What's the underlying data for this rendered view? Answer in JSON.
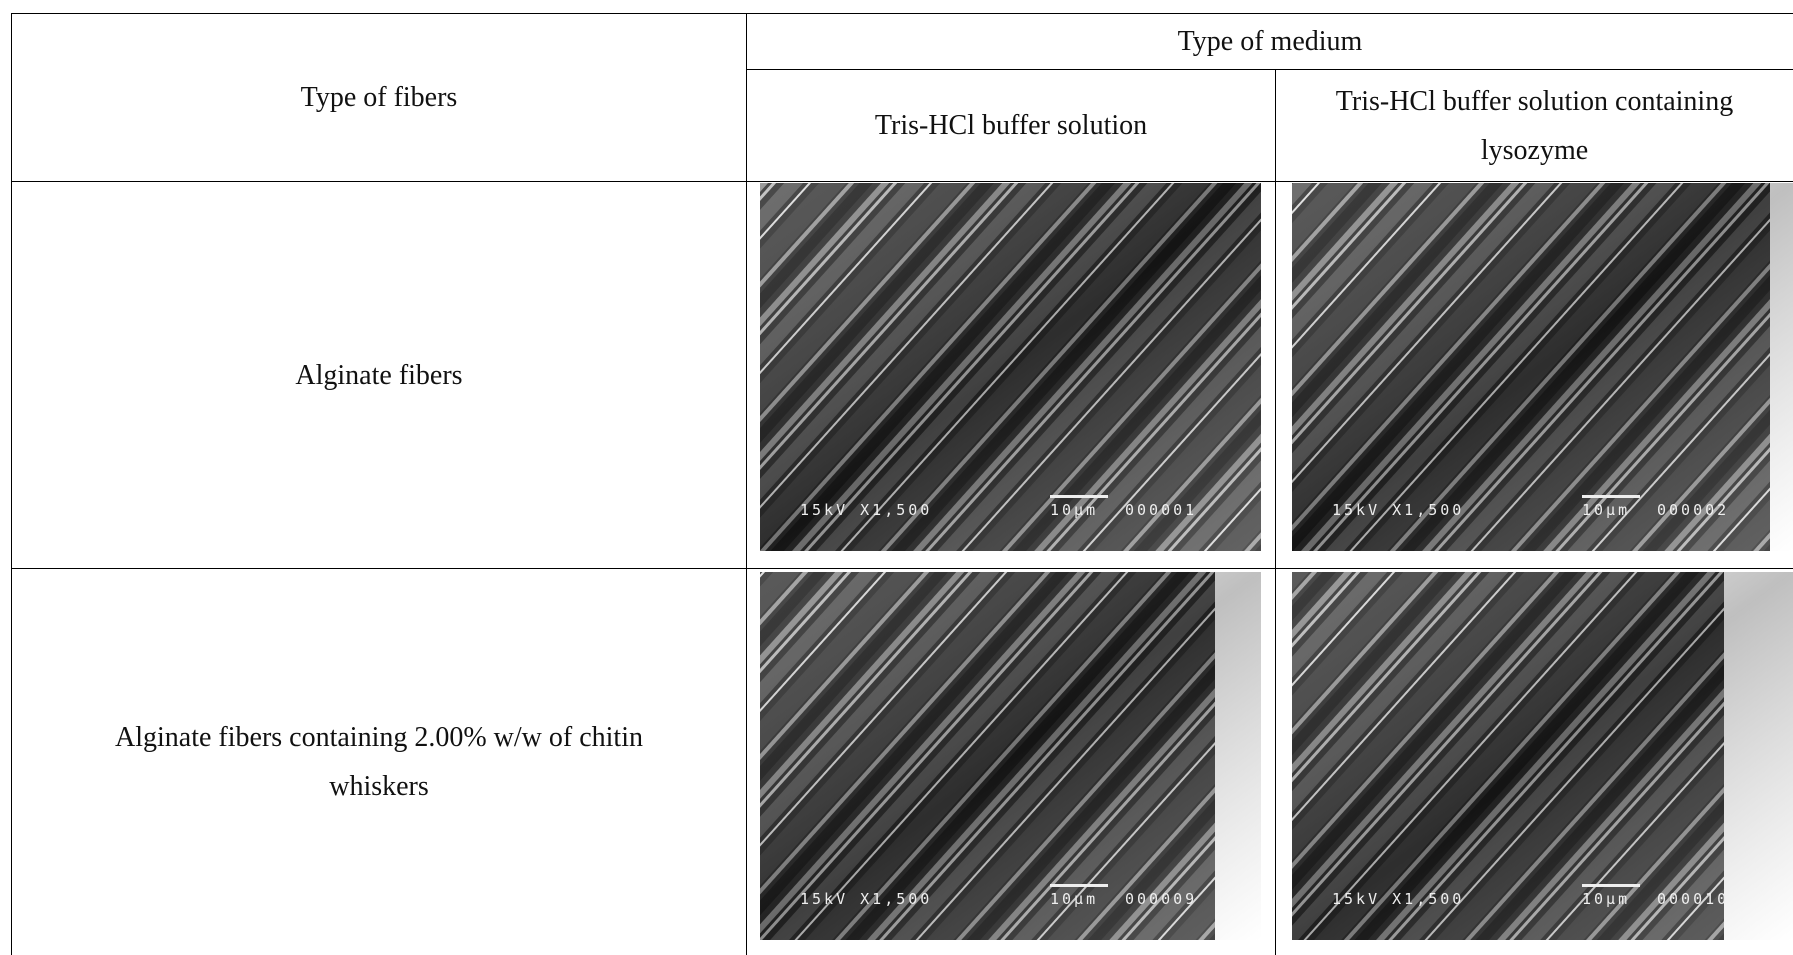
{
  "table": {
    "header": {
      "fiber_type": "Type of fibers",
      "medium": "Type of medium",
      "media": [
        "Tris-HCl buffer solution",
        "Tris-HCl buffer solution containing lysozyme"
      ]
    },
    "rows": [
      {
        "fiber": "Alginate fibers",
        "micrographs": [
          {
            "settings": "15kV X1,500",
            "scale": "10µm",
            "id": "000001"
          },
          {
            "settings": "15kV X1,500",
            "scale": "10µm",
            "id": "000002"
          }
        ]
      },
      {
        "fiber": "Alginate fibers containing 2.00% w/w of chitin whiskers",
        "micrographs": [
          {
            "settings": "15kV X1,500",
            "scale": "10µm",
            "id": "000009"
          },
          {
            "settings": "15kV X1,500",
            "scale": "10µm",
            "id": "000010"
          }
        ]
      }
    ]
  }
}
